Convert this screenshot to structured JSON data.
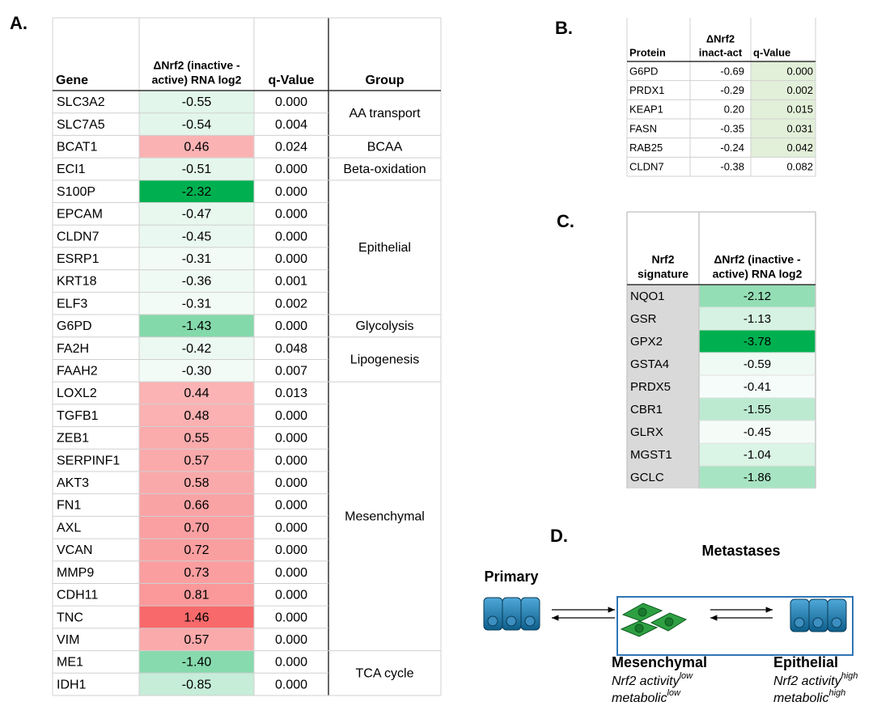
{
  "table_a": {
    "label": "A.",
    "headers": [
      [
        "Gene"
      ],
      [
        "ΔNrf2 (inactive -",
        "active) RNA log2"
      ],
      [
        "q-Value"
      ],
      [
        "Group"
      ]
    ],
    "groups": [
      {
        "label": "AA transport",
        "rows": [
          [
            "SLC3A2",
            "-0.55",
            "0.000"
          ],
          [
            "SLC7A5",
            "-0.54",
            "0.004"
          ]
        ]
      },
      {
        "label": "BCAA",
        "rows": [
          [
            "BCAT1",
            "0.46",
            "0.024"
          ]
        ]
      },
      {
        "label": "Beta-oxidation",
        "rows": [
          [
            "ECI1",
            "-0.51",
            "0.000"
          ]
        ]
      },
      {
        "label": "Epithelial",
        "rows": [
          [
            "S100P",
            "-2.32",
            "0.000"
          ],
          [
            "EPCAM",
            "-0.47",
            "0.000"
          ],
          [
            "CLDN7",
            "-0.45",
            "0.000"
          ],
          [
            "ESRP1",
            "-0.31",
            "0.000"
          ],
          [
            "KRT18",
            "-0.36",
            "0.001"
          ],
          [
            "ELF3",
            "-0.31",
            "0.002"
          ]
        ]
      },
      {
        "label": "Glycolysis",
        "rows": [
          [
            "G6PD",
            "-1.43",
            "0.000"
          ]
        ]
      },
      {
        "label": "Lipogenesis",
        "rows": [
          [
            "FA2H",
            "-0.42",
            "0.048"
          ],
          [
            "FAAH2",
            "-0.30",
            "0.007"
          ]
        ]
      },
      {
        "label": "Mesenchymal",
        "rows": [
          [
            "LOXL2",
            "0.44",
            "0.013"
          ],
          [
            "TGFB1",
            "0.48",
            "0.000"
          ],
          [
            "ZEB1",
            "0.55",
            "0.000"
          ],
          [
            "SERPINF1",
            "0.57",
            "0.000"
          ],
          [
            "AKT3",
            "0.58",
            "0.000"
          ],
          [
            "FN1",
            "0.66",
            "0.000"
          ],
          [
            "AXL",
            "0.70",
            "0.000"
          ],
          [
            "VCAN",
            "0.72",
            "0.000"
          ],
          [
            "MMP9",
            "0.73",
            "0.000"
          ],
          [
            "CDH11",
            "0.81",
            "0.000"
          ],
          [
            "TNC",
            "1.46",
            "0.000"
          ],
          [
            "VIM",
            "0.57",
            "0.000"
          ]
        ]
      },
      {
        "label": "TCA cycle",
        "rows": [
          [
            "ME1",
            "-1.40",
            "0.000"
          ],
          [
            "IDH1",
            "-0.85",
            "0.000"
          ]
        ]
      }
    ]
  },
  "table_b": {
    "label": "B.",
    "headers": [
      [
        "Protein"
      ],
      [
        "ΔNrf2",
        "inact-act"
      ],
      [
        "q-Value"
      ]
    ],
    "rows": [
      [
        "G6PD",
        "-0.69",
        "0.000"
      ],
      [
        "PRDX1",
        "-0.29",
        "0.002"
      ],
      [
        "KEAP1",
        "0.20",
        "0.015"
      ],
      [
        "FASN",
        "-0.35",
        "0.031"
      ],
      [
        "RAB25",
        "-0.24",
        "0.042"
      ],
      [
        "CLDN7",
        "-0.38",
        "0.082"
      ]
    ]
  },
  "table_c": {
    "label": "C.",
    "headers": [
      [
        "Nrf2",
        "signature"
      ],
      [
        "ΔNrf2 (inactive -",
        "active) RNA log2"
      ]
    ],
    "rows": [
      [
        "NQO1",
        "-2.12"
      ],
      [
        "GSR",
        "-1.13"
      ],
      [
        "GPX2",
        "-3.78"
      ],
      [
        "GSTA4",
        "-0.59"
      ],
      [
        "PRDX5",
        "-0.41"
      ],
      [
        "CBR1",
        "-1.55"
      ],
      [
        "GLRX",
        "-0.45"
      ],
      [
        "MGST1",
        "-1.04"
      ],
      [
        "GCLC",
        "-1.86"
      ]
    ]
  },
  "panel_d": {
    "label": "D.",
    "metastases": "Metastases",
    "primary": "Primary",
    "mesenchymal": {
      "title": "Mesenchymal",
      "activity": "Nrf2 activity",
      "activity_level": "low",
      "metabolic": "metabolic",
      "metabolic_level": "low"
    },
    "epithelial": {
      "title": "Epithelial",
      "activity": "Nrf2 activity",
      "activity_level": "high",
      "metabolic": "metabolic",
      "metabolic_level": "high"
    }
  }
}
